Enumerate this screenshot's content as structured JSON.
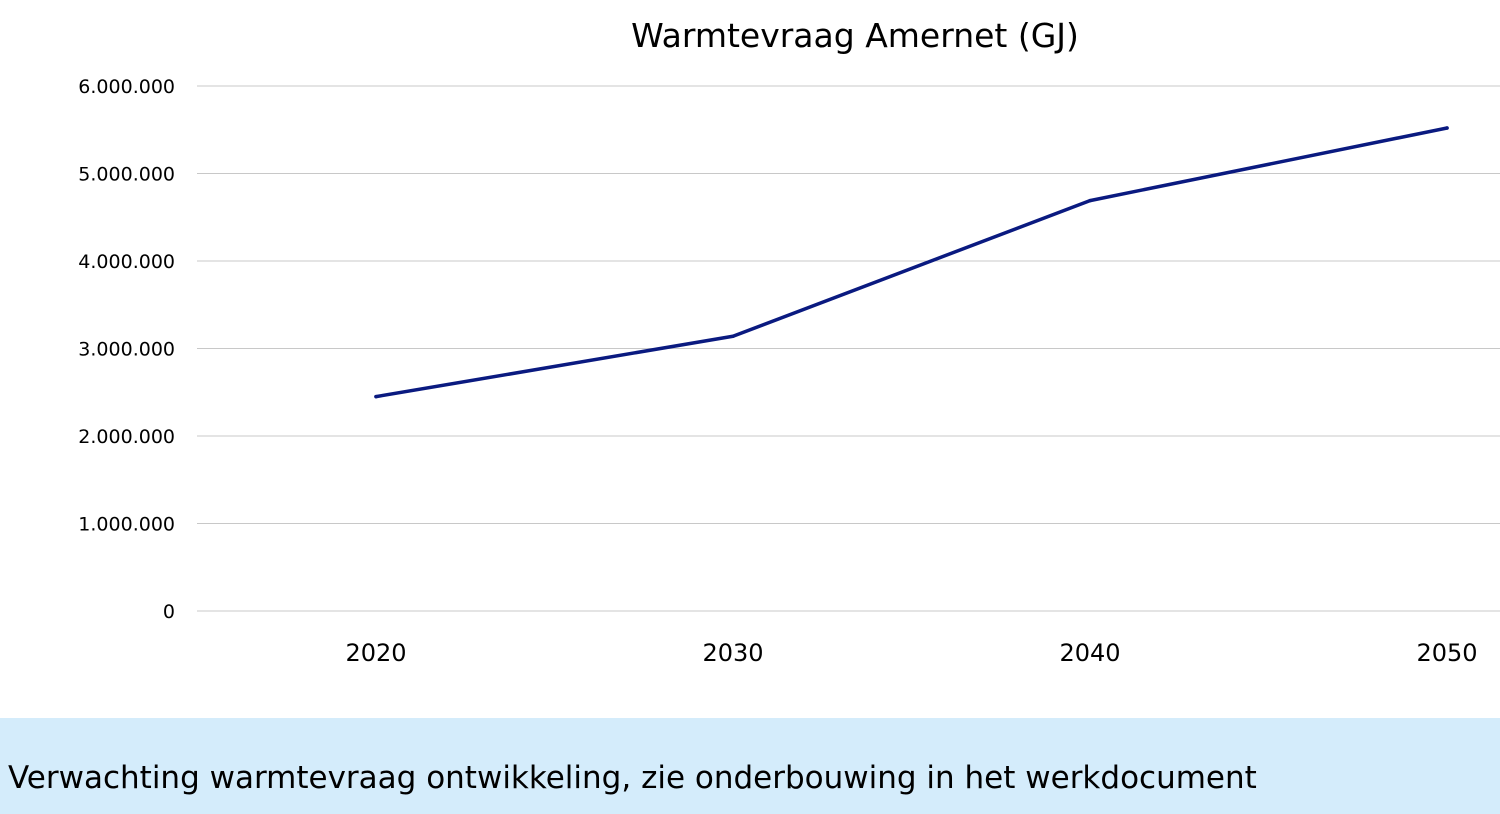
{
  "colors": {
    "series_line": "#0a1a80",
    "gridline": "#c8c8c8",
    "caption_background": "#d4ecfb",
    "background": "#ffffff"
  },
  "caption": {
    "text": "Verwachting warmtevraag ontwikkeling, zie onderbouwing in het werkdocument"
  },
  "chart_data": {
    "type": "line",
    "title": "Warmtevraag Amernet (GJ)",
    "xlabel": "",
    "ylabel": "",
    "categories": [
      "2020",
      "2030",
      "2040",
      "2050"
    ],
    "series": [
      {
        "values": [
          2450000,
          3140000,
          4690000,
          5520000
        ]
      }
    ],
    "ylim": [
      0,
      6000000
    ],
    "y_ticks": [
      {
        "value": 0,
        "label": "0"
      },
      {
        "value": 1000000,
        "label": "1.000.000"
      },
      {
        "value": 2000000,
        "label": "2.000.000"
      },
      {
        "value": 3000000,
        "label": "3.000.000"
      },
      {
        "value": 4000000,
        "label": "4.000.000"
      },
      {
        "value": 5000000,
        "label": "5.000.000"
      },
      {
        "value": 6000000,
        "label": "6.000.000"
      }
    ],
    "grid": true,
    "legend": "none"
  }
}
